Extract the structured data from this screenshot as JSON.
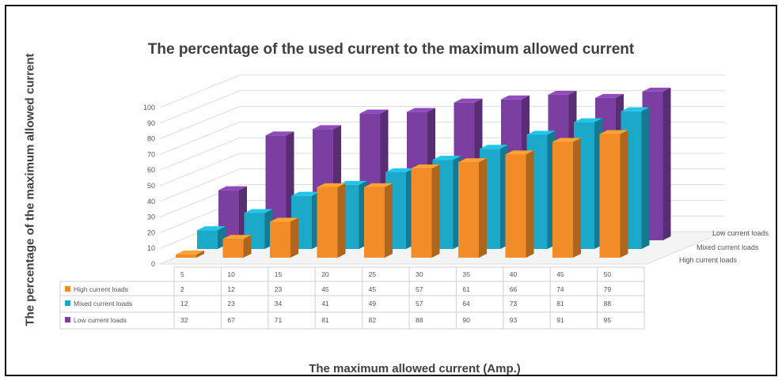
{
  "chart_data": {
    "type": "bar",
    "subtype": "3d-clustered-column",
    "title": "The percentage of the used current to the maximum allowed current",
    "xlabel": "The maximum allowed current (Amp.)",
    "ylabel": "The percentage of  the maximum allowed current",
    "categories": [
      "5",
      "10",
      "15",
      "20",
      "25",
      "30",
      "35",
      "40",
      "45",
      "50"
    ],
    "y_ticks": [
      "0",
      "10",
      "20",
      "30",
      "40",
      "50",
      "60",
      "70",
      "80",
      "90",
      "100"
    ],
    "ylim": [
      0,
      100
    ],
    "grid": true,
    "legend_placement": "data-table",
    "series": [
      {
        "name": "High current loads",
        "color": "#f28c28",
        "values": [
          2,
          12,
          23,
          45,
          45,
          57,
          61,
          66,
          74,
          79
        ]
      },
      {
        "name": "Mixed current loads",
        "color": "#1ca8c9",
        "values": [
          12,
          23,
          34,
          41,
          49,
          57,
          64,
          73,
          81,
          88
        ]
      },
      {
        "name": "Low current loads",
        "color": "#7a3fa0",
        "values": [
          32,
          67,
          71,
          81,
          82,
          88,
          90,
          93,
          91,
          95
        ]
      }
    ]
  }
}
